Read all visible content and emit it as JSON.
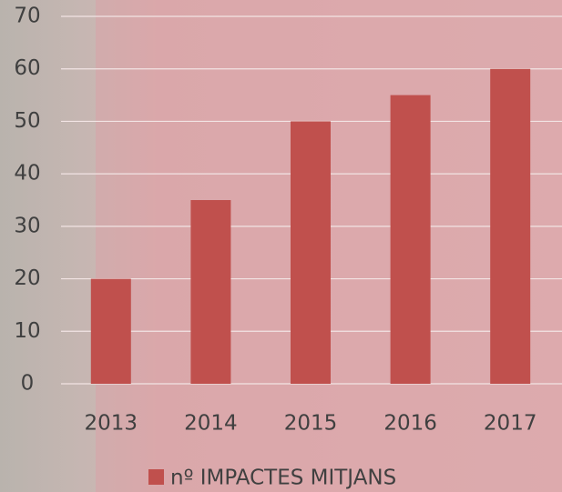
{
  "chart_data": {
    "type": "bar",
    "categories": [
      "2013",
      "2014",
      "2015",
      "2016",
      "2017"
    ],
    "series": [
      {
        "name": "nº IMPACTES MITJANS",
        "color": "#c0504d",
        "values": [
          20,
          35,
          50,
          55,
          60
        ]
      }
    ],
    "ylim": [
      0,
      70
    ],
    "yticks": [
      0,
      10,
      20,
      30,
      40,
      50,
      60,
      70
    ],
    "grid": true,
    "legend": "bottom"
  }
}
